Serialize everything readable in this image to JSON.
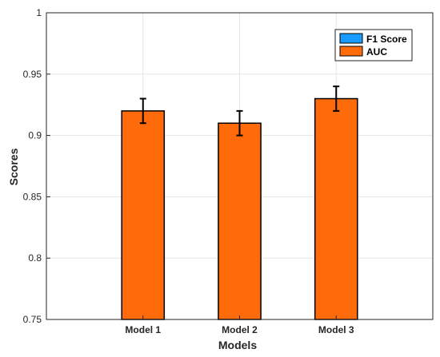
{
  "chart_data": {
    "type": "bar",
    "title": "",
    "xlabel": "Models",
    "ylabel": "Scores",
    "categories": [
      "Model 1",
      "Model 2",
      "Model 3"
    ],
    "ylim": [
      0.75,
      1
    ],
    "yticks": [
      0.75,
      0.8,
      0.85,
      0.9,
      0.95,
      1
    ],
    "ytick_labels": [
      "0.75",
      "0.8",
      "0.85",
      "0.9",
      "0.95",
      "1"
    ],
    "grid": true,
    "legend": {
      "position": "top-right",
      "entries": [
        "F1 Score",
        "AUC"
      ]
    },
    "series": [
      {
        "name": "F1 Score",
        "color": "#1a9bff",
        "values": [
          0,
          0,
          0
        ],
        "errors": [
          0,
          0,
          0
        ]
      },
      {
        "name": "AUC",
        "color": "#ff6a0a",
        "values": [
          0.92,
          0.91,
          0.93
        ],
        "errors": [
          0.01,
          0.01,
          0.01
        ]
      }
    ]
  }
}
